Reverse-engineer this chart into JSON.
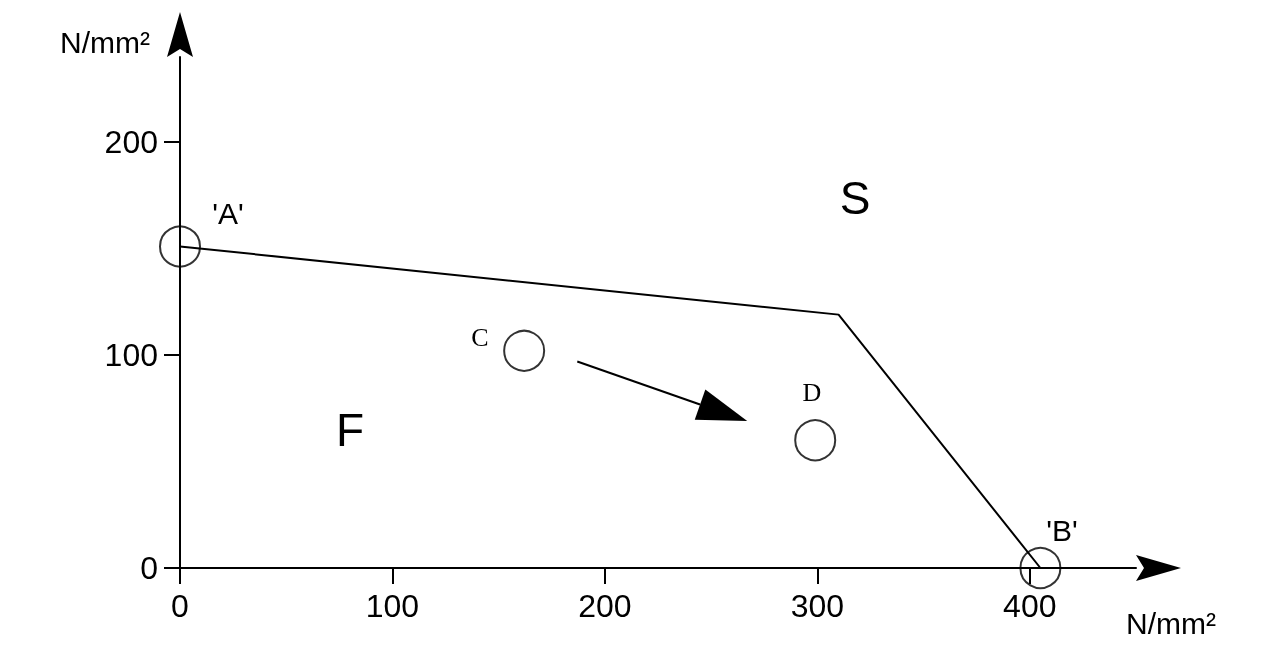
{
  "chart_data": {
    "type": "line",
    "xlabel": "N/mm²",
    "ylabel": "N/mm²",
    "xlim": [
      0,
      450
    ],
    "ylim": [
      0,
      240
    ],
    "xticks": [
      0,
      100,
      200,
      300,
      400
    ],
    "yticks": [
      0,
      100,
      200
    ],
    "grid": false,
    "series": [
      {
        "x": [
          0,
          310,
          405
        ],
        "values": [
          151,
          119,
          0
        ],
        "color": "#000000",
        "marker": "none",
        "line_style": "solid"
      },
      {
        "type": "scatter",
        "x": [
          0,
          405,
          162,
          299
        ],
        "values": [
          151,
          0,
          102,
          60
        ],
        "color": "#000000",
        "marker": "circle"
      }
    ],
    "annotations": [
      "'A'",
      "'B'",
      "C",
      "D",
      "S",
      "F"
    ]
  }
}
